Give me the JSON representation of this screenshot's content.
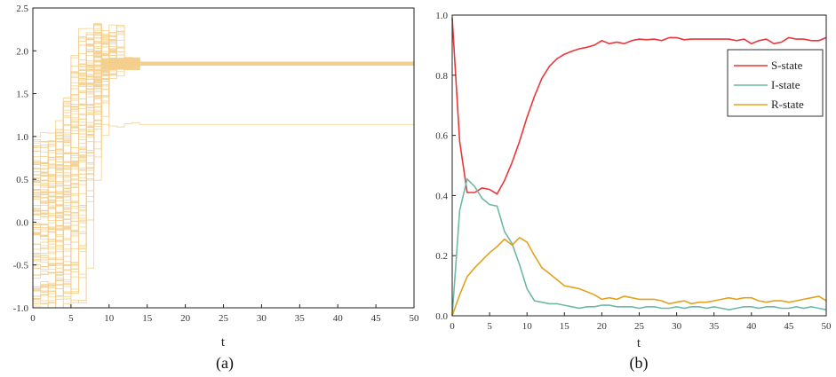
{
  "chart_data": [
    {
      "type": "line",
      "caption": "(a)",
      "xlabel": "t",
      "ylabel": "",
      "xlim": [
        0,
        50
      ],
      "ylim": [
        -1.0,
        2.5
      ],
      "x_ticks": [
        "0",
        "5",
        "10",
        "15",
        "20",
        "25",
        "30",
        "35",
        "40",
        "45",
        "50"
      ],
      "y_ticks": [
        "-1.0",
        "-0.5",
        "0.0",
        "0.5",
        "1.0",
        "1.5",
        "2.0",
        "2.5"
      ],
      "line_color": "#f5cf8c",
      "description_series": {
        "count": 100,
        "initial_range": [
          -1.0,
          1.0
        ],
        "peak_max": 2.32,
        "converge_time": 14,
        "main_level": 1.855,
        "main_band": [
          1.83,
          1.87
        ],
        "outlier_level": 1.14
      }
    },
    {
      "type": "line",
      "caption": "(b)",
      "xlabel": "t",
      "ylabel": "",
      "xlim": [
        0,
        50
      ],
      "ylim": [
        0.0,
        1.0
      ],
      "x_ticks": [
        "0",
        "5",
        "10",
        "15",
        "20",
        "25",
        "30",
        "35",
        "40",
        "45",
        "50"
      ],
      "y_ticks": [
        "0.0",
        "0.2",
        "0.4",
        "0.6",
        "0.8",
        "1.0"
      ],
      "legend_position": "top-right",
      "x": [
        0,
        1,
        2,
        3,
        4,
        5,
        6,
        7,
        8,
        9,
        10,
        11,
        12,
        13,
        14,
        15,
        16,
        17,
        18,
        19,
        20,
        21,
        22,
        23,
        24,
        25,
        26,
        27,
        28,
        29,
        30,
        31,
        32,
        33,
        34,
        35,
        36,
        37,
        38,
        39,
        40,
        41,
        42,
        43,
        44,
        45,
        46,
        47,
        48,
        49,
        50
      ],
      "series": [
        {
          "name": "S-state",
          "color": "#e8373a",
          "values": [
            0.99,
            0.58,
            0.41,
            0.41,
            0.425,
            0.42,
            0.405,
            0.45,
            0.51,
            0.58,
            0.66,
            0.73,
            0.79,
            0.83,
            0.855,
            0.87,
            0.88,
            0.888,
            0.893,
            0.9,
            0.915,
            0.905,
            0.91,
            0.905,
            0.915,
            0.92,
            0.918,
            0.92,
            0.915,
            0.925,
            0.925,
            0.918,
            0.92,
            0.92,
            0.92,
            0.92,
            0.92,
            0.92,
            0.915,
            0.92,
            0.905,
            0.915,
            0.92,
            0.905,
            0.91,
            0.925,
            0.92,
            0.92,
            0.915,
            0.915,
            0.925
          ]
        },
        {
          "name": "I-state",
          "color": "#6fb8a5",
          "values": [
            0.0,
            0.35,
            0.455,
            0.43,
            0.39,
            0.37,
            0.365,
            0.28,
            0.24,
            0.17,
            0.09,
            0.05,
            0.045,
            0.04,
            0.04,
            0.035,
            0.03,
            0.025,
            0.03,
            0.03,
            0.035,
            0.035,
            0.03,
            0.03,
            0.03,
            0.025,
            0.03,
            0.03,
            0.025,
            0.025,
            0.03,
            0.025,
            0.03,
            0.03,
            0.025,
            0.03,
            0.025,
            0.02,
            0.025,
            0.03,
            0.03,
            0.025,
            0.03,
            0.03,
            0.025,
            0.025,
            0.03,
            0.025,
            0.03,
            0.025,
            0.02
          ]
        },
        {
          "name": "R-state",
          "color": "#e2a21f",
          "values": [
            0.0,
            0.07,
            0.13,
            0.16,
            0.185,
            0.21,
            0.23,
            0.255,
            0.235,
            0.26,
            0.245,
            0.2,
            0.16,
            0.14,
            0.12,
            0.1,
            0.095,
            0.09,
            0.08,
            0.07,
            0.055,
            0.06,
            0.055,
            0.065,
            0.06,
            0.055,
            0.055,
            0.055,
            0.05,
            0.04,
            0.045,
            0.05,
            0.04,
            0.045,
            0.045,
            0.05,
            0.055,
            0.06,
            0.055,
            0.06,
            0.06,
            0.05,
            0.045,
            0.05,
            0.05,
            0.045,
            0.05,
            0.055,
            0.06,
            0.065,
            0.05
          ]
        }
      ]
    }
  ]
}
